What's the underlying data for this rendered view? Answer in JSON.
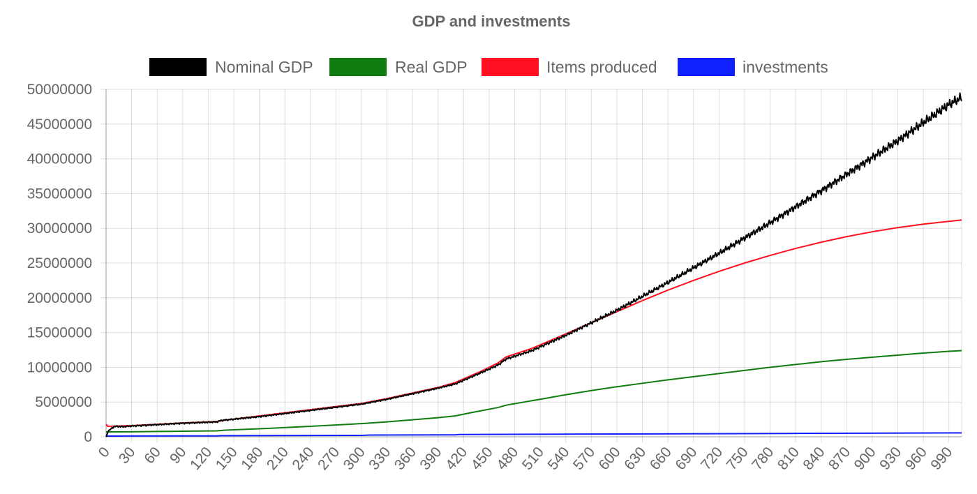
{
  "chart_data": {
    "type": "line",
    "title": "GDP and investments",
    "xlabel": "",
    "ylabel": "",
    "legend_position": "top",
    "grid": true,
    "xlim": [
      0,
      1005
    ],
    "ylim": [
      0,
      50000000
    ],
    "x_ticks": [
      0,
      30,
      60,
      90,
      120,
      150,
      180,
      210,
      240,
      270,
      300,
      330,
      360,
      390,
      420,
      450,
      480,
      510,
      540,
      570,
      600,
      630,
      660,
      690,
      720,
      750,
      780,
      810,
      840,
      870,
      900,
      930,
      960,
      990
    ],
    "y_ticks": [
      0,
      5000000,
      10000000,
      15000000,
      20000000,
      25000000,
      30000000,
      35000000,
      40000000,
      45000000,
      50000000
    ],
    "series": [
      {
        "name": "Nominal GDP",
        "color": "#000000",
        "noisy": true,
        "points": [
          [
            0,
            0
          ],
          [
            3,
            900000
          ],
          [
            10,
            1500000
          ],
          [
            20,
            1450000
          ],
          [
            30,
            1550000
          ],
          [
            60,
            1750000
          ],
          [
            90,
            1950000
          ],
          [
            130,
            2150000
          ],
          [
            135,
            2350000
          ],
          [
            180,
            2900000
          ],
          [
            240,
            3800000
          ],
          [
            300,
            4700000
          ],
          [
            330,
            5400000
          ],
          [
            360,
            6200000
          ],
          [
            390,
            7000000
          ],
          [
            410,
            7600000
          ],
          [
            440,
            9200000
          ],
          [
            460,
            10300000
          ],
          [
            470,
            11200000
          ],
          [
            500,
            12400000
          ],
          [
            540,
            14600000
          ],
          [
            570,
            16400000
          ],
          [
            600,
            18200000
          ],
          [
            630,
            20200000
          ],
          [
            660,
            22200000
          ],
          [
            690,
            24300000
          ],
          [
            720,
            26400000
          ],
          [
            750,
            28600000
          ],
          [
            780,
            30800000
          ],
          [
            810,
            33100000
          ],
          [
            840,
            35400000
          ],
          [
            870,
            37800000
          ],
          [
            900,
            40200000
          ],
          [
            930,
            42600000
          ],
          [
            960,
            45200000
          ],
          [
            990,
            47800000
          ],
          [
            1005,
            48800000
          ]
        ]
      },
      {
        "name": "Real GDP",
        "color": "#107c10",
        "noisy": false,
        "points": [
          [
            0,
            700000
          ],
          [
            30,
            720000
          ],
          [
            60,
            760000
          ],
          [
            90,
            800000
          ],
          [
            130,
            850000
          ],
          [
            140,
            950000
          ],
          [
            180,
            1150000
          ],
          [
            240,
            1500000
          ],
          [
            300,
            1900000
          ],
          [
            330,
            2150000
          ],
          [
            360,
            2450000
          ],
          [
            390,
            2750000
          ],
          [
            410,
            3000000
          ],
          [
            430,
            3500000
          ],
          [
            460,
            4200000
          ],
          [
            470,
            4550000
          ],
          [
            510,
            5400000
          ],
          [
            540,
            6050000
          ],
          [
            570,
            6650000
          ],
          [
            600,
            7200000
          ],
          [
            630,
            7700000
          ],
          [
            660,
            8200000
          ],
          [
            690,
            8650000
          ],
          [
            720,
            9100000
          ],
          [
            750,
            9550000
          ],
          [
            780,
            10000000
          ],
          [
            810,
            10400000
          ],
          [
            840,
            10800000
          ],
          [
            870,
            11150000
          ],
          [
            900,
            11450000
          ],
          [
            930,
            11750000
          ],
          [
            960,
            12050000
          ],
          [
            990,
            12300000
          ],
          [
            1005,
            12400000
          ]
        ]
      },
      {
        "name": "Items produced",
        "color": "#ff1020",
        "noisy": false,
        "points": [
          [
            0,
            1800000
          ],
          [
            2,
            1500000
          ],
          [
            30,
            1600000
          ],
          [
            60,
            1800000
          ],
          [
            90,
            2000000
          ],
          [
            130,
            2200000
          ],
          [
            140,
            2400000
          ],
          [
            180,
            3000000
          ],
          [
            240,
            3900000
          ],
          [
            300,
            4800000
          ],
          [
            330,
            5500000
          ],
          [
            360,
            6300000
          ],
          [
            390,
            7100000
          ],
          [
            410,
            7800000
          ],
          [
            440,
            9400000
          ],
          [
            460,
            10600000
          ],
          [
            470,
            11500000
          ],
          [
            500,
            12700000
          ],
          [
            540,
            14800000
          ],
          [
            570,
            16400000
          ],
          [
            600,
            18000000
          ],
          [
            630,
            19600000
          ],
          [
            660,
            21100000
          ],
          [
            690,
            22500000
          ],
          [
            720,
            23800000
          ],
          [
            750,
            25000000
          ],
          [
            780,
            26100000
          ],
          [
            810,
            27100000
          ],
          [
            840,
            28000000
          ],
          [
            870,
            28800000
          ],
          [
            900,
            29500000
          ],
          [
            930,
            30100000
          ],
          [
            960,
            30600000
          ],
          [
            990,
            31000000
          ],
          [
            1005,
            31200000
          ]
        ]
      },
      {
        "name": "investments",
        "color": "#1020ff",
        "noisy": false,
        "points": [
          [
            0,
            100000
          ],
          [
            30,
            110000
          ],
          [
            130,
            130000
          ],
          [
            135,
            160000
          ],
          [
            300,
            200000
          ],
          [
            310,
            250000
          ],
          [
            410,
            280000
          ],
          [
            415,
            330000
          ],
          [
            600,
            400000
          ],
          [
            800,
            480000
          ],
          [
            1005,
            560000
          ]
        ]
      }
    ]
  }
}
